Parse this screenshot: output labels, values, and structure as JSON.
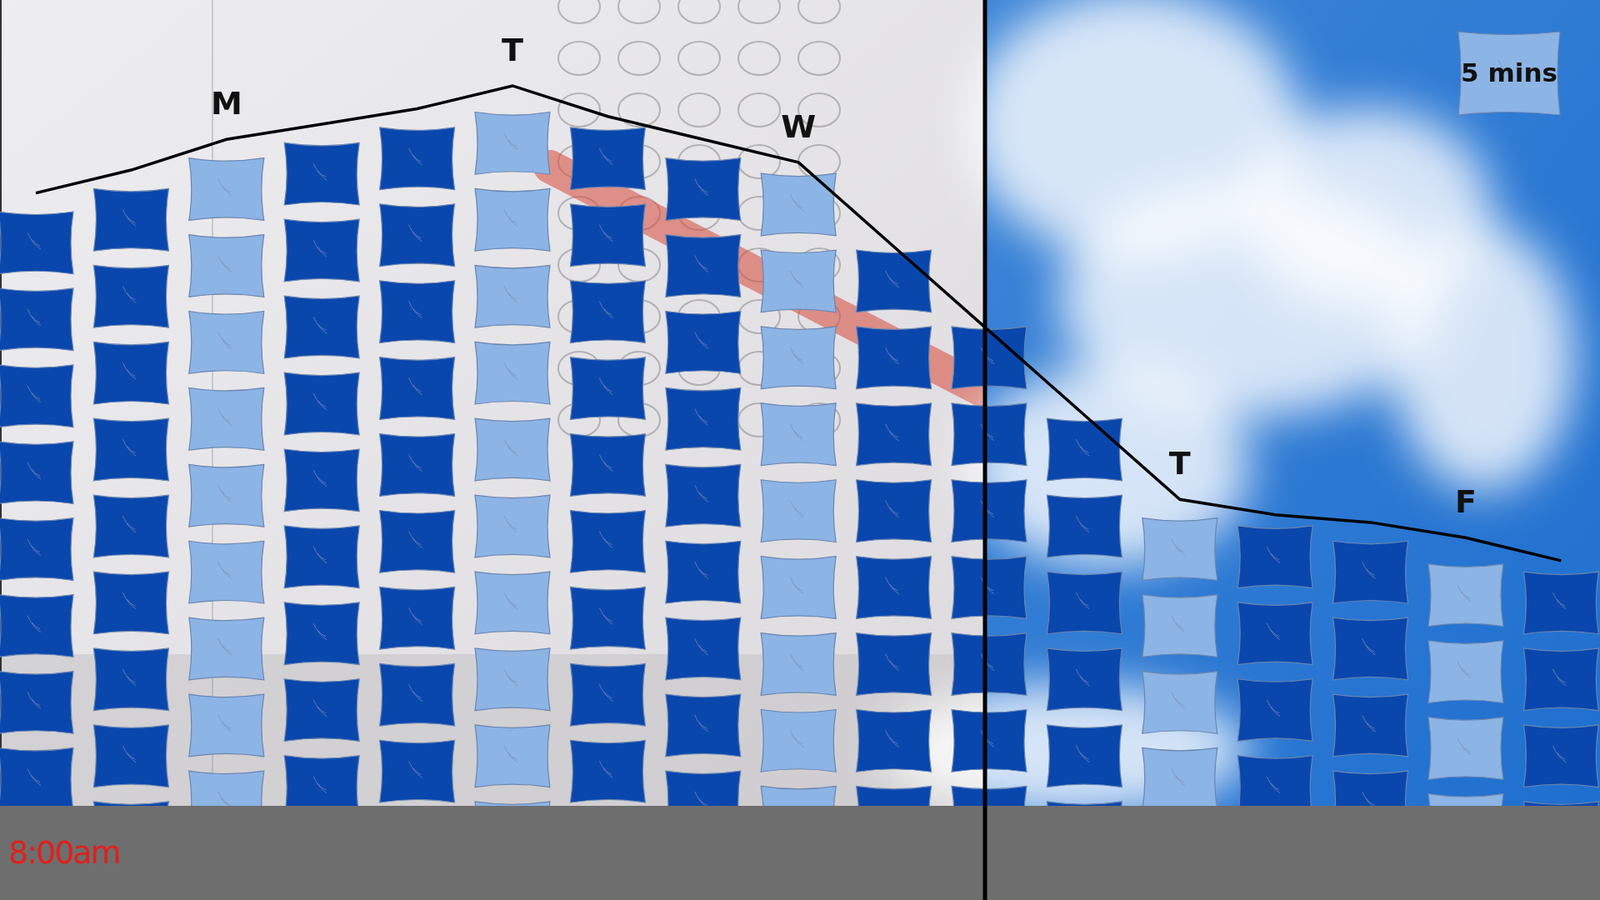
{
  "chart_data": {
    "type": "bar",
    "categories": [
      null,
      null,
      "M",
      null,
      null,
      "T",
      null,
      null,
      "W",
      null,
      null,
      null,
      "T",
      null,
      null,
      "F",
      null
    ],
    "series": [
      {
        "type": "bar",
        "values": [
          39,
          40.5,
          42.5,
          43.5,
          44.5,
          45.5,
          44.5,
          42.5,
          41.5,
          36.5,
          31.5,
          25.5,
          19,
          18.5,
          17.5,
          16,
          15.5
        ],
        "colors": [
          "#0a47ad",
          "#0a47ad",
          "#8cb4e4",
          "#0a47ad",
          "#0a47ad",
          "#8cb4e4",
          "#0a47ad",
          "#0a47ad",
          "#8cb4e4",
          "#0a47ad",
          "#0a47ad",
          "#0a47ad",
          "#8cb4e4",
          "#0a47ad",
          "#0a47ad",
          "#8cb4e4",
          "#0a47ad"
        ]
      },
      {
        "type": "line",
        "color": "#000000",
        "values": [
          40,
          41.5,
          43.5,
          44.5,
          45.5,
          47,
          45,
          43.5,
          42,
          36.5,
          31,
          25.5,
          20,
          19,
          18.5,
          17.5,
          16
        ]
      }
    ],
    "ylim": [
      0,
      52.6
    ],
    "tick_labels": false,
    "unit": {
      "label": "5 mins",
      "value": 5
    },
    "annotations": [
      "8:00am"
    ]
  }
}
